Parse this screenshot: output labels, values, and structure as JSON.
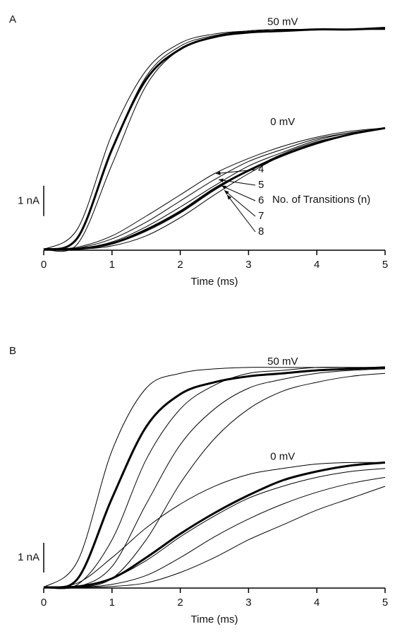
{
  "chart_data": [
    {
      "type": "line",
      "panel": "A",
      "xlabel": "Time (ms)",
      "xlim": [
        0,
        5
      ],
      "xticks": [
        0,
        1,
        2,
        3,
        4,
        5
      ],
      "ylim": [
        0,
        7.8
      ],
      "scale_bar": {
        "value": 1,
        "label": "1 nA"
      },
      "annotation": "No. of Transitions (n)",
      "x": [
        0,
        0.5,
        1,
        1.5,
        2,
        2.5,
        3,
        3.5,
        4,
        4.5,
        5
      ],
      "series": [
        {
          "name": "50 mV",
          "color": "#000",
          "linewidth": 3,
          "values": [
            0,
            0.4,
            3.3,
            5.6,
            6.6,
            7.0,
            7.15,
            7.2,
            7.25,
            7.25,
            7.3
          ]
        },
        {
          "color": "#000",
          "linewidth": 1,
          "values": [
            0,
            0.7,
            3.8,
            5.9,
            6.8,
            7.1,
            7.2,
            7.25,
            7.25,
            7.25,
            7.25
          ]
        },
        {
          "color": "#000",
          "linewidth": 1,
          "values": [
            0,
            0.4,
            3.3,
            5.7,
            6.7,
            7.05,
            7.2,
            7.25,
            7.25,
            7.25,
            7.25
          ]
        },
        {
          "color": "#000",
          "linewidth": 1,
          "values": [
            0,
            0.2,
            2.8,
            5.4,
            6.6,
            7.0,
            7.2,
            7.25,
            7.25,
            7.25,
            7.25
          ]
        },
        {
          "name": "0 mV",
          "color": "#000",
          "linewidth": 3,
          "values": [
            0,
            0.02,
            0.2,
            0.65,
            1.25,
            2.0,
            2.6,
            3.1,
            3.5,
            3.8,
            4.0
          ]
        },
        {
          "name": "4",
          "color": "#000",
          "linewidth": 1,
          "values": [
            0,
            0.08,
            0.45,
            1.1,
            1.8,
            2.5,
            3.0,
            3.4,
            3.7,
            3.9,
            4.0
          ]
        },
        {
          "name": "5",
          "color": "#000",
          "linewidth": 1,
          "values": [
            0,
            0.05,
            0.35,
            0.9,
            1.6,
            2.3,
            2.9,
            3.3,
            3.65,
            3.85,
            4.0
          ]
        },
        {
          "name": "6",
          "color": "#000",
          "linewidth": 1,
          "values": [
            0,
            0.03,
            0.25,
            0.75,
            1.4,
            2.1,
            2.75,
            3.2,
            3.6,
            3.85,
            4.0
          ]
        },
        {
          "name": "7",
          "color": "#000",
          "linewidth": 1,
          "values": [
            0,
            0.02,
            0.18,
            0.6,
            1.2,
            1.95,
            2.6,
            3.15,
            3.55,
            3.8,
            4.0
          ]
        },
        {
          "name": "8",
          "color": "#000",
          "linewidth": 1,
          "values": [
            0,
            0.01,
            0.12,
            0.45,
            1.05,
            1.8,
            2.5,
            3.1,
            3.5,
            3.8,
            4.0
          ]
        }
      ]
    },
    {
      "type": "line",
      "panel": "B",
      "xlabel": "Time (ms)",
      "xlim": [
        0,
        5
      ],
      "xticks": [
        0,
        1,
        2,
        3,
        4,
        5
      ],
      "ylim": [
        0,
        7.8
      ],
      "scale_bar": {
        "value": 1,
        "label": "1 nA"
      },
      "x": [
        0,
        0.5,
        1,
        1.5,
        2,
        2.5,
        3,
        3.5,
        4,
        4.5,
        5
      ],
      "series": [
        {
          "name": "50 mV",
          "color": "#000",
          "linewidth": 3,
          "values": [
            0,
            0.3,
            3.0,
            5.4,
            6.5,
            6.9,
            7.1,
            7.2,
            7.3,
            7.35,
            7.4
          ]
        },
        {
          "color": "#000",
          "linewidth": 1,
          "values": [
            0,
            0.9,
            4.6,
            6.7,
            7.2,
            7.35,
            7.4,
            7.4,
            7.4,
            7.4,
            7.4
          ]
        },
        {
          "color": "#000",
          "linewidth": 1,
          "values": [
            0,
            0.1,
            1.6,
            4.3,
            6.0,
            6.8,
            7.2,
            7.3,
            7.4,
            7.4,
            7.4
          ]
        },
        {
          "color": "#000",
          "linewidth": 1,
          "values": [
            0,
            0.02,
            0.7,
            2.8,
            4.8,
            6.0,
            6.7,
            7.0,
            7.2,
            7.3,
            7.35
          ]
        },
        {
          "color": "#000",
          "linewidth": 1,
          "values": [
            0,
            0,
            0.3,
            1.6,
            3.5,
            5.0,
            6.0,
            6.6,
            6.9,
            7.1,
            7.2
          ]
        },
        {
          "name": "0 mV",
          "color": "#000",
          "linewidth": 3,
          "values": [
            0,
            0.03,
            0.3,
            1.0,
            1.8,
            2.5,
            3.1,
            3.6,
            3.9,
            4.1,
            4.2
          ]
        },
        {
          "color": "#000",
          "linewidth": 1,
          "values": [
            0,
            0.15,
            1.0,
            2.0,
            2.8,
            3.4,
            3.8,
            4.0,
            4.15,
            4.2,
            4.2
          ]
        },
        {
          "color": "#000",
          "linewidth": 1,
          "values": [
            0,
            0.02,
            0.3,
            0.9,
            1.7,
            2.4,
            3.0,
            3.4,
            3.7,
            3.9,
            4.0
          ]
        },
        {
          "color": "#000",
          "linewidth": 1,
          "values": [
            0,
            0,
            0.1,
            0.4,
            1.0,
            1.7,
            2.3,
            2.8,
            3.2,
            3.5,
            3.7
          ]
        },
        {
          "color": "#000",
          "linewidth": 1,
          "values": [
            0,
            0,
            0.03,
            0.15,
            0.5,
            1.0,
            1.6,
            2.1,
            2.6,
            3.0,
            3.4
          ]
        }
      ]
    }
  ]
}
